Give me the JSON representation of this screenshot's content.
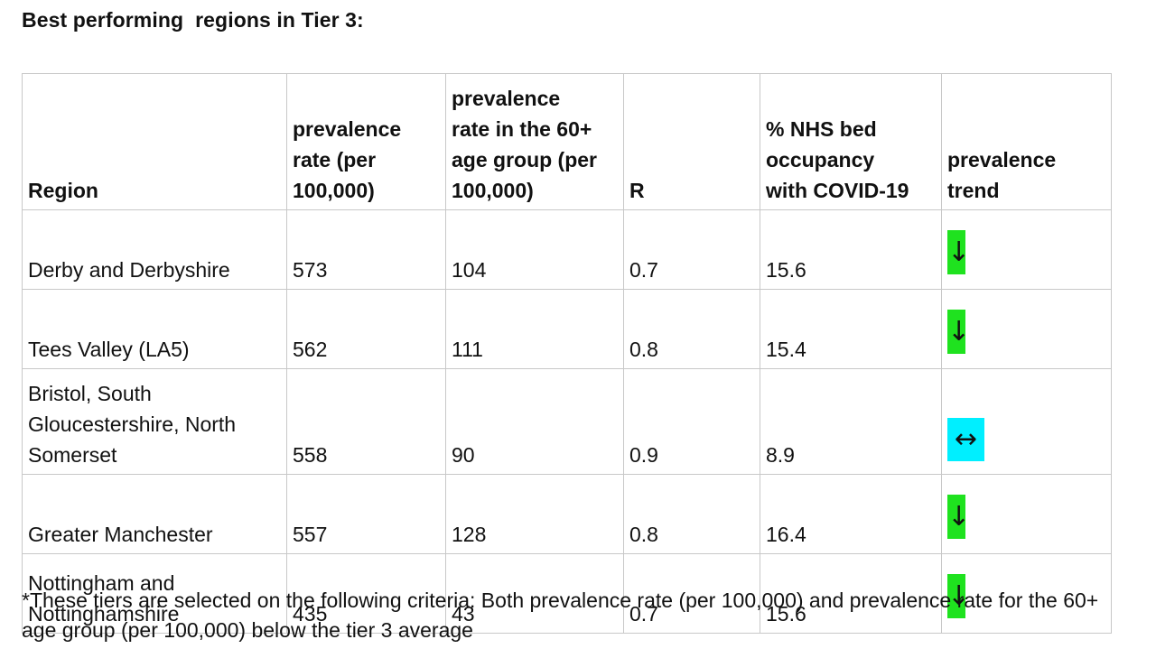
{
  "title": "Best performing  regions in Tier 3:",
  "table": {
    "headers": [
      "Region",
      "prevalence\nrate (per\n100,000)",
      "prevalence\nrate in the 60+\nage group (per\n100,000)",
      "R",
      "% NHS  bed\noccupancy\nwith COVID-19",
      "prevalence\ntrend"
    ],
    "rows": [
      {
        "region": "Derby and Derbyshire",
        "prevalence": "573",
        "prevalence_60": "104",
        "r": "0.7",
        "bed_occupancy": "15.6",
        "trend": "down",
        "trend_symbol": "↓",
        "trend_color": "#1fe21f"
      },
      {
        "region": "Tees Valley (LA5)",
        "prevalence": "562",
        "prevalence_60": "111",
        "r": "0.8",
        "bed_occupancy": "15.4",
        "trend": "down",
        "trend_symbol": "↓",
        "trend_color": "#1fe21f"
      },
      {
        "region": "Bristol, South\nGloucestershire, North\nSomerset",
        "prevalence": "558",
        "prevalence_60": "90",
        "r": "0.9",
        "bed_occupancy": "8.9",
        "trend": "flat",
        "trend_symbol": "↔",
        "trend_color": "#00efff"
      },
      {
        "region": "Greater Manchester",
        "prevalence": "557",
        "prevalence_60": "128",
        "r": "0.8",
        "bed_occupancy": "16.4",
        "trend": "down",
        "trend_symbol": "↓",
        "trend_color": "#1fe21f"
      },
      {
        "region": "Nottingham and\nNottinghamshire",
        "prevalence": "435",
        "prevalence_60": "43",
        "r": "0.7",
        "bed_occupancy": "15.6",
        "trend": "down",
        "trend_symbol": "↓",
        "trend_color": "#1fe21f"
      }
    ]
  },
  "footnote": "*These tiers are selected on the following criteria: Both prevalence rate (per 100,000) and prevalence rate for the 60+ age group (per 100,000) below the tier 3 average"
}
